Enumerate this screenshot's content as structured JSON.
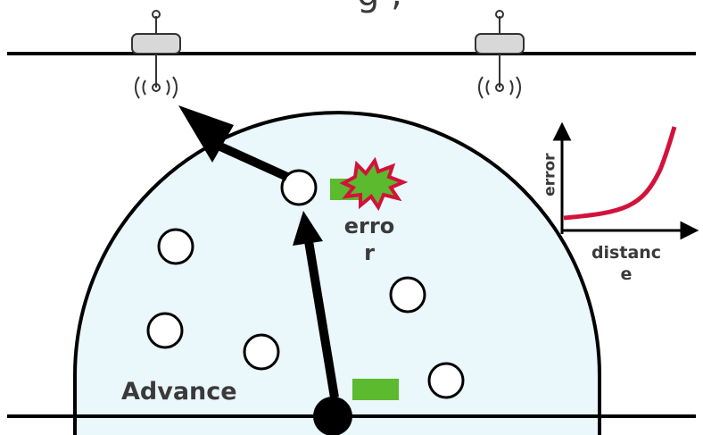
{
  "title_fragment": "g ,",
  "labels": {
    "error": "error",
    "axis_y": "error",
    "axis_x": "distance",
    "advance": "Advance"
  }
}
